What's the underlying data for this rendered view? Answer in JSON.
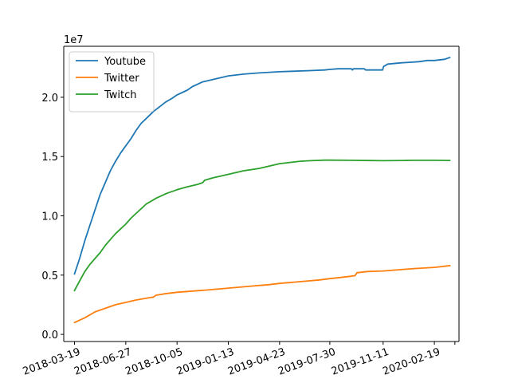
{
  "chart_data": {
    "type": "line",
    "title": "",
    "xlabel": "",
    "ylabel": "",
    "y_offset_text": "1e7",
    "x_is_date": true,
    "xlim": [
      "2018-02-26",
      "2020-04-07"
    ],
    "ylim": [
      -0.06,
      2.43
    ],
    "y_ticks": [
      0.0,
      0.5,
      1.0,
      1.5,
      2.0
    ],
    "y_tick_labels": [
      "0.0",
      "0.5",
      "1.0",
      "1.5",
      "2.0"
    ],
    "x_ticks": [
      "2018-03-19",
      "2018-06-27",
      "2018-10-05",
      "2019-01-13",
      "2019-04-23",
      "2019-07-30",
      "2019-11-11",
      "2020-02-19"
    ],
    "x_tick_labels": [
      "2018-03-19",
      "2018-06-27",
      "2018-10-05",
      "2019-01-13",
      "2019-04-23",
      "2019-07-30",
      "2019-11-11",
      "2020-02-19"
    ],
    "x_minor_tick_extra": [
      "2020-03-30"
    ],
    "x_tick_rotation": 20,
    "grid": false,
    "legend_position": "upper-left",
    "series": [
      {
        "name": "Youtube",
        "color": "#1f77b4",
        "points": [
          [
            "2018-03-19",
            0.51
          ],
          [
            "2018-03-29",
            0.64
          ],
          [
            "2018-04-08",
            0.79
          ],
          [
            "2018-04-18",
            0.92
          ],
          [
            "2018-04-28",
            1.05
          ],
          [
            "2018-05-08",
            1.18
          ],
          [
            "2018-05-18",
            1.28
          ],
          [
            "2018-05-28",
            1.38
          ],
          [
            "2018-06-07",
            1.46
          ],
          [
            "2018-06-17",
            1.53
          ],
          [
            "2018-06-27",
            1.59
          ],
          [
            "2018-07-07",
            1.65
          ],
          [
            "2018-07-17",
            1.72
          ],
          [
            "2018-07-27",
            1.78
          ],
          [
            "2018-08-08",
            1.83
          ],
          [
            "2018-08-20",
            1.88
          ],
          [
            "2018-09-01",
            1.92
          ],
          [
            "2018-09-13",
            1.96
          ],
          [
            "2018-09-25",
            1.99
          ],
          [
            "2018-10-05",
            2.02
          ],
          [
            "2018-10-15",
            2.04
          ],
          [
            "2018-10-25",
            2.06
          ],
          [
            "2018-11-04",
            2.09
          ],
          [
            "2018-11-14",
            2.11
          ],
          [
            "2018-11-24",
            2.13
          ],
          [
            "2018-12-04",
            2.14
          ],
          [
            "2018-12-14",
            2.15
          ],
          [
            "2019-01-13",
            2.18
          ],
          [
            "2019-02-12",
            2.195
          ],
          [
            "2019-03-14",
            2.205
          ],
          [
            "2019-04-23",
            2.215
          ],
          [
            "2019-05-23",
            2.22
          ],
          [
            "2019-06-22",
            2.225
          ],
          [
            "2019-07-20",
            2.23
          ],
          [
            "2019-07-30",
            2.235
          ],
          [
            "2019-08-15",
            2.24
          ],
          [
            "2019-09-10",
            2.24
          ],
          [
            "2019-09-12",
            2.23
          ],
          [
            "2019-09-14",
            2.24
          ],
          [
            "2019-10-05",
            2.24
          ],
          [
            "2019-10-08",
            2.23
          ],
          [
            "2019-10-20",
            2.23
          ],
          [
            "2019-11-05",
            2.23
          ],
          [
            "2019-11-10",
            2.23
          ],
          [
            "2019-11-12",
            2.26
          ],
          [
            "2019-11-20",
            2.28
          ],
          [
            "2019-12-15",
            2.29
          ],
          [
            "2020-01-01",
            2.295
          ],
          [
            "2020-01-20",
            2.3
          ],
          [
            "2020-02-05",
            2.31
          ],
          [
            "2020-02-19",
            2.31
          ],
          [
            "2020-03-10",
            2.32
          ],
          [
            "2020-03-20",
            2.335
          ]
        ]
      },
      {
        "name": "Twitter",
        "color": "#ff7f0e",
        "points": [
          [
            "2018-03-19",
            0.1
          ],
          [
            "2018-04-08",
            0.14
          ],
          [
            "2018-04-28",
            0.19
          ],
          [
            "2018-05-18",
            0.22
          ],
          [
            "2018-06-07",
            0.25
          ],
          [
            "2018-06-27",
            0.27
          ],
          [
            "2018-07-17",
            0.29
          ],
          [
            "2018-08-06",
            0.305
          ],
          [
            "2018-08-20",
            0.315
          ],
          [
            "2018-08-25",
            0.33
          ],
          [
            "2018-09-15",
            0.345
          ],
          [
            "2018-10-05",
            0.355
          ],
          [
            "2018-11-04",
            0.365
          ],
          [
            "2018-12-04",
            0.375
          ],
          [
            "2019-01-13",
            0.39
          ],
          [
            "2019-02-22",
            0.405
          ],
          [
            "2019-04-03",
            0.42
          ],
          [
            "2019-04-23",
            0.43
          ],
          [
            "2019-06-02",
            0.445
          ],
          [
            "2019-07-12",
            0.46
          ],
          [
            "2019-07-30",
            0.47
          ],
          [
            "2019-08-19",
            0.48
          ],
          [
            "2019-09-08",
            0.49
          ],
          [
            "2019-09-17",
            0.495
          ],
          [
            "2019-09-21",
            0.52
          ],
          [
            "2019-10-11",
            0.53
          ],
          [
            "2019-11-11",
            0.535
          ],
          [
            "2019-12-11",
            0.545
          ],
          [
            "2020-01-10",
            0.555
          ],
          [
            "2020-02-19",
            0.565
          ],
          [
            "2020-03-20",
            0.58
          ]
        ]
      },
      {
        "name": "Twitch",
        "color": "#2ca02c",
        "points": [
          [
            "2018-03-19",
            0.37
          ],
          [
            "2018-03-29",
            0.45
          ],
          [
            "2018-04-08",
            0.53
          ],
          [
            "2018-04-18",
            0.59
          ],
          [
            "2018-04-28",
            0.64
          ],
          [
            "2018-05-08",
            0.69
          ],
          [
            "2018-05-18",
            0.75
          ],
          [
            "2018-05-28",
            0.8
          ],
          [
            "2018-06-07",
            0.85
          ],
          [
            "2018-06-17",
            0.89
          ],
          [
            "2018-06-27",
            0.93
          ],
          [
            "2018-07-07",
            0.98
          ],
          [
            "2018-07-17",
            1.02
          ],
          [
            "2018-07-27",
            1.06
          ],
          [
            "2018-08-06",
            1.1
          ],
          [
            "2018-08-26",
            1.15
          ],
          [
            "2018-09-15",
            1.19
          ],
          [
            "2018-10-05",
            1.22
          ],
          [
            "2018-10-25",
            1.245
          ],
          [
            "2018-11-14",
            1.265
          ],
          [
            "2018-11-24",
            1.28
          ],
          [
            "2018-11-28",
            1.3
          ],
          [
            "2018-12-14",
            1.32
          ],
          [
            "2019-01-13",
            1.35
          ],
          [
            "2019-02-12",
            1.38
          ],
          [
            "2019-03-14",
            1.4
          ],
          [
            "2019-04-03",
            1.42
          ],
          [
            "2019-04-23",
            1.44
          ],
          [
            "2019-05-13",
            1.45
          ],
          [
            "2019-06-02",
            1.46
          ],
          [
            "2019-06-22",
            1.465
          ],
          [
            "2019-07-20",
            1.47
          ],
          [
            "2019-07-30",
            1.47
          ],
          [
            "2019-09-08",
            1.468
          ],
          [
            "2019-10-18",
            1.466
          ],
          [
            "2019-11-11",
            1.465
          ],
          [
            "2019-12-21",
            1.467
          ],
          [
            "2020-01-10",
            1.468
          ],
          [
            "2020-02-19",
            1.468
          ],
          [
            "2020-03-20",
            1.467
          ]
        ]
      }
    ]
  }
}
